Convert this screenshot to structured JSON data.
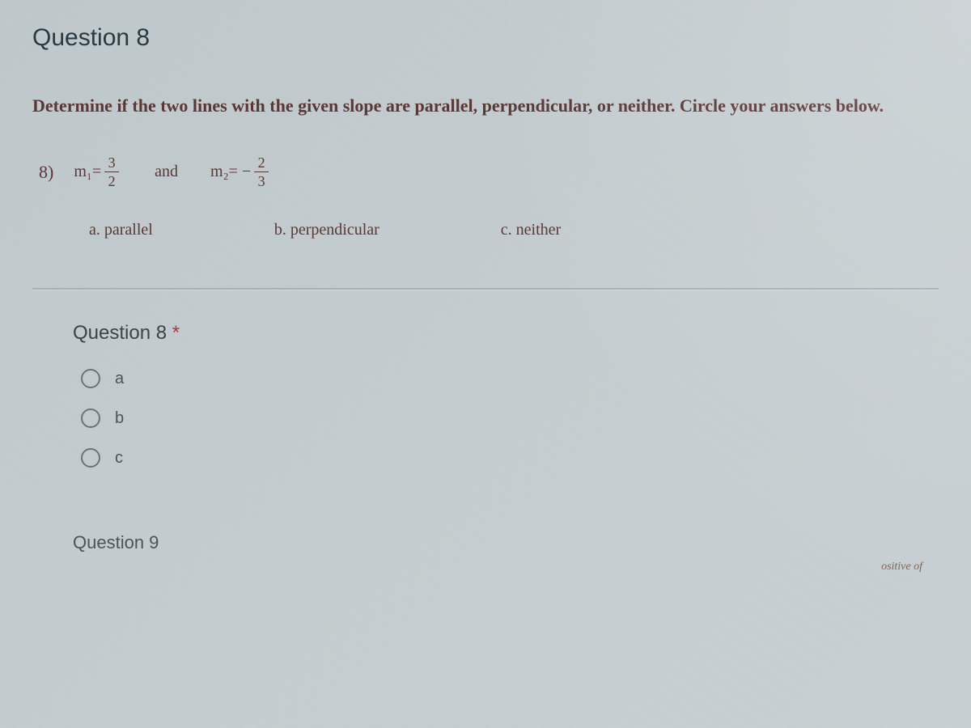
{
  "header": {
    "title": "Question 8"
  },
  "instruction": "Determine if the two lines with the given slope are parallel, perpendicular, or neither. Circle your answers below.",
  "problem": {
    "number": "8)",
    "slope1_var": "m₁=",
    "slope1_num": "3",
    "slope1_den": "2",
    "connector": "and",
    "slope2_var": "m₂= −",
    "slope2_num": "2",
    "slope2_den": "3"
  },
  "choices": {
    "a": "a. parallel",
    "b": "b. perpendicular",
    "c": "c. neither"
  },
  "answer_form": {
    "label": "Question 8",
    "required_marker": "*",
    "options": [
      {
        "value": "a",
        "label": "a"
      },
      {
        "value": "b",
        "label": "b"
      },
      {
        "value": "c",
        "label": "c"
      }
    ]
  },
  "next_question": "Question 9",
  "footer_fragment": "ositive of",
  "colors": {
    "background": "#c2cacd",
    "heading": "#2a3a42",
    "instruction_text": "#5a3838",
    "body_text": "#4a5558",
    "radio_border": "#6a7578",
    "divider": "#a8b0b3"
  },
  "typography": {
    "header_fontsize": 30,
    "instruction_fontsize": 22,
    "body_fontsize": 20,
    "answer_label_fontsize": 24
  }
}
